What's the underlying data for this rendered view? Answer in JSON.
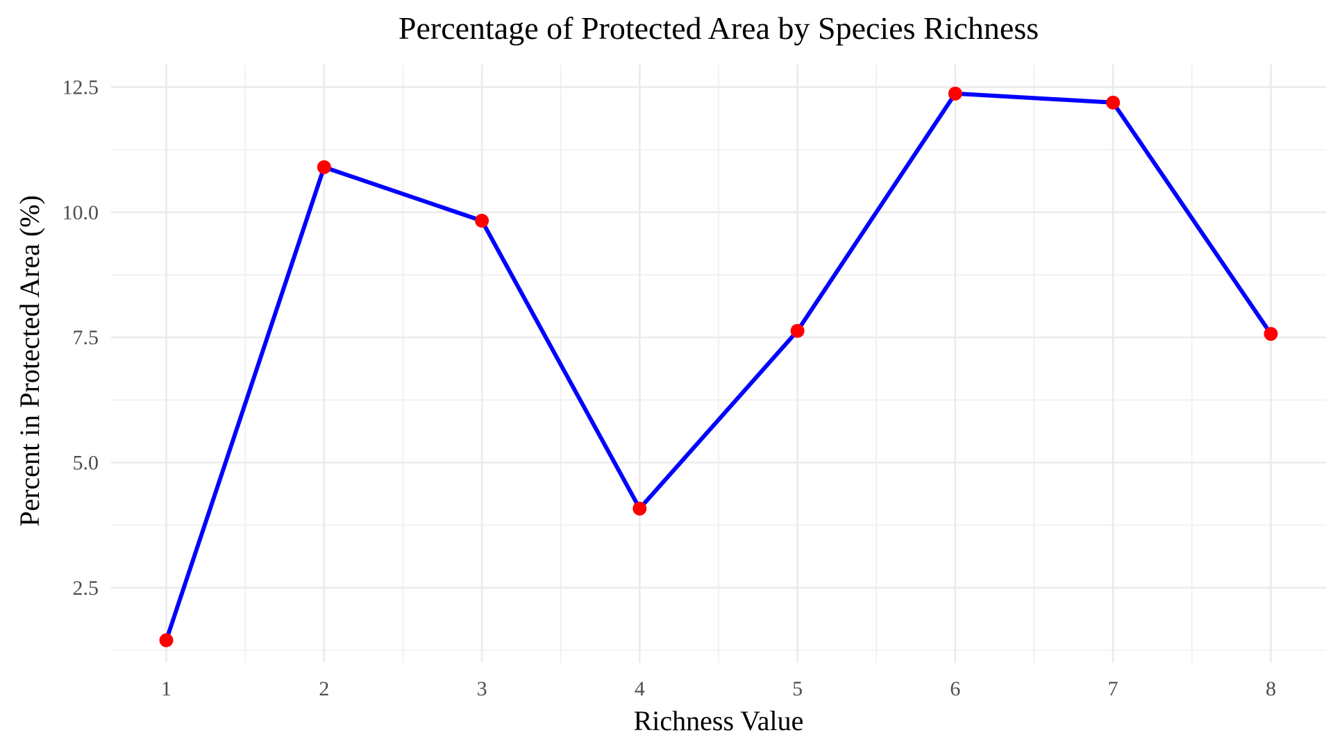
{
  "chart_data": {
    "type": "line",
    "title": "Percentage of Protected Area by Species Richness",
    "xlabel": "Richness Value",
    "ylabel": "Percent in Protected Area (%)",
    "x": [
      1,
      2,
      3,
      4,
      5,
      6,
      7,
      8
    ],
    "series": [
      {
        "values": [
          1.45,
          10.9,
          9.83,
          4.08,
          7.63,
          12.37,
          12.19,
          7.57
        ]
      }
    ],
    "xlim": [
      0.65,
      8.35
    ],
    "ylim": [
      1.0,
      12.95
    ],
    "x_ticks": [
      1,
      2,
      3,
      4,
      5,
      6,
      7,
      8
    ],
    "x_tick_labels": [
      "1",
      "2",
      "3",
      "4",
      "5",
      "6",
      "7",
      "8"
    ],
    "y_ticks": [
      2.5,
      5.0,
      7.5,
      10.0,
      12.5
    ],
    "y_tick_labels": [
      "2.5",
      "5.0",
      "7.5",
      "10.0",
      "12.5"
    ],
    "grid": true,
    "legend": "none",
    "line_color": "#0000ff",
    "point_color": "#ff0000"
  }
}
